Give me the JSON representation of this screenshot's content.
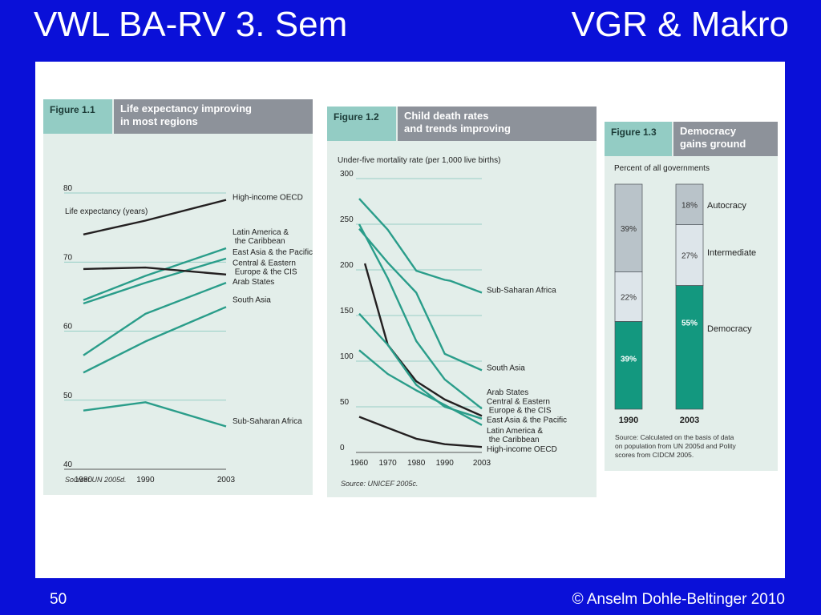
{
  "slide": {
    "title_left": "VWL BA-RV 3. Sem",
    "title_right": "VGR & Makro",
    "page_number": "50",
    "copyright": "© Anselm Dohle-Beltinger 2010"
  },
  "colors": {
    "background": "#0a10d8",
    "teal": "#2a9d8a",
    "black_line": "#231f20",
    "panel": "#e3eeea"
  },
  "figures": {
    "fig1": {
      "number": "Figure 1.1",
      "title": "Life expectancy improving\nin most regions",
      "ylabel": "Life expectancy (years)",
      "source": "Source: UN 2005d."
    },
    "fig2": {
      "number": "Figure 1.2",
      "title": "Child death rates\nand trends improving",
      "ylabel": "Under-five mortality rate (per 1,000 live births)",
      "source": "Source: UNICEF 2005c."
    },
    "fig3": {
      "number": "Figure 1.3",
      "title": "Democracy\ngains ground",
      "ylabel": "Percent of all governments",
      "source": "Source: Calculated on the basis of data on population from UN 2005d and Polity scores from CIDCM 2005."
    }
  },
  "chart_data": [
    {
      "type": "line",
      "title": "Life expectancy improving in most regions",
      "ylabel": "Life expectancy (years)",
      "x": [
        1980,
        1990,
        2003
      ],
      "xticks": [
        "1980",
        "1990",
        "2003"
      ],
      "yticks": [
        "40",
        "50",
        "60",
        "70",
        "80"
      ],
      "ylim": [
        40,
        80
      ],
      "series": [
        {
          "name": "High-income OECD",
          "values": [
            74,
            76,
            79
          ],
          "color": "#231f20"
        },
        {
          "name": "Latin America & the Caribbean",
          "values": [
            64.5,
            68,
            72
          ],
          "color": "#2a9d8a"
        },
        {
          "name": "East Asia & the Pacific",
          "values": [
            64,
            67,
            70.5
          ],
          "color": "#2a9d8a"
        },
        {
          "name": "Central & Eastern Europe & the CIS",
          "values": [
            69,
            69.2,
            68.2
          ],
          "color": "#231f20"
        },
        {
          "name": "Arab States",
          "values": [
            56.5,
            62.5,
            67
          ],
          "color": "#2a9d8a"
        },
        {
          "name": "South Asia",
          "values": [
            54,
            58.5,
            63.5
          ],
          "color": "#2a9d8a"
        },
        {
          "name": "Sub-Saharan Africa",
          "values": [
            48.5,
            49.7,
            46.2
          ],
          "color": "#2a9d8a"
        }
      ],
      "legend_labels": [
        {
          "lines": [
            "High-income OECD"
          ],
          "y": 79
        },
        {
          "lines": [
            "Latin America &",
            "  the Caribbean"
          ],
          "y": 74
        },
        {
          "lines": [
            "East Asia & the Pacific"
          ],
          "y": 71.1
        },
        {
          "lines": [
            "Central & Eastern",
            "  Europe & the CIS"
          ],
          "y": 69.5
        },
        {
          "lines": [
            "Arab States"
          ],
          "y": 66.8
        },
        {
          "lines": [
            "South Asia"
          ],
          "y": 64.2
        },
        {
          "lines": [
            "Sub-Saharan Africa"
          ],
          "y": 46.6
        }
      ]
    },
    {
      "type": "line",
      "title": "Child death rates and trends improving",
      "ylabel": "Under-five mortality rate (per 1,000 live births)",
      "x": [
        1960,
        1970,
        1980,
        1990,
        2003
      ],
      "xticks": [
        "1960",
        "1970",
        "1980",
        "1990",
        "2003"
      ],
      "yticks": [
        "0",
        "50",
        "100",
        "150",
        "200",
        "250",
        "300"
      ],
      "ylim": [
        0,
        300
      ],
      "series": [
        {
          "name": "Sub-Saharan Africa",
          "x": [
            1960,
            1970,
            1980,
            1990,
            1992,
            2003
          ],
          "values": [
            278,
            244,
            199,
            189,
            188,
            175
          ],
          "color": "#2a9d8a"
        },
        {
          "name": "South Asia",
          "x": [
            1960,
            1970,
            1980,
            1990,
            2003
          ],
          "values": [
            245,
            208,
            175,
            108,
            90
          ],
          "color": "#2a9d8a"
        },
        {
          "name": "Arab States",
          "x": [
            1960,
            1970,
            1980,
            1990,
            2003
          ],
          "values": [
            250,
            191,
            122,
            80,
            48
          ],
          "color": "#2a9d8a"
        },
        {
          "name": "Central & Eastern Europe & the CIS",
          "x": [
            1962,
            1970,
            1980,
            1990,
            2003
          ],
          "values": [
            207,
            118,
            78,
            58,
            40
          ],
          "color": "#231f20"
        },
        {
          "name": "East Asia & the Pacific",
          "x": [
            1960,
            1970,
            1980,
            1990,
            2003
          ],
          "values": [
            152,
            118,
            74,
            50,
            37
          ],
          "color": "#2a9d8a"
        },
        {
          "name": "Latin America & the Caribbean",
          "x": [
            1960,
            1970,
            1980,
            1990,
            2003
          ],
          "values": [
            112,
            86,
            68,
            52,
            30
          ],
          "color": "#2a9d8a"
        },
        {
          "name": "High-income OECD",
          "x": [
            1960,
            1970,
            1980,
            1990,
            2003
          ],
          "values": [
            39,
            27,
            15,
            9,
            6
          ],
          "color": "#231f20"
        }
      ],
      "legend_labels": [
        {
          "lines": [
            "Sub-Saharan Africa"
          ],
          "y": 175
        },
        {
          "lines": [
            "South Asia"
          ],
          "y": 90
        },
        {
          "lines": [
            "Arab States"
          ],
          "y": 63
        },
        {
          "lines": [
            "Central & Eastern",
            "  Europe & the CIS"
          ],
          "y": 53
        },
        {
          "lines": [
            "East Asia & the Pacific"
          ],
          "y": 33
        },
        {
          "lines": [
            "Latin America &",
            "  the Caribbean"
          ],
          "y": 21
        },
        {
          "lines": [
            "High-income OECD"
          ],
          "y": 1
        }
      ]
    },
    {
      "type": "bar",
      "stacked": true,
      "title": "Democracy gains ground",
      "ylabel": "Percent of all governments",
      "categories": [
        "1990",
        "2003"
      ],
      "series": [
        {
          "name": "Democracy",
          "values": [
            39,
            55
          ],
          "labels": [
            "39%",
            "55%"
          ],
          "color": "#13987f"
        },
        {
          "name": "Intermediate",
          "values": [
            22,
            27
          ],
          "labels": [
            "22%",
            "27%"
          ],
          "color": "#dde5ea"
        },
        {
          "name": "Autocracy",
          "values": [
            39,
            18
          ],
          "labels": [
            "39%",
            "18%"
          ],
          "color": "#b9c3c9"
        }
      ]
    }
  ]
}
